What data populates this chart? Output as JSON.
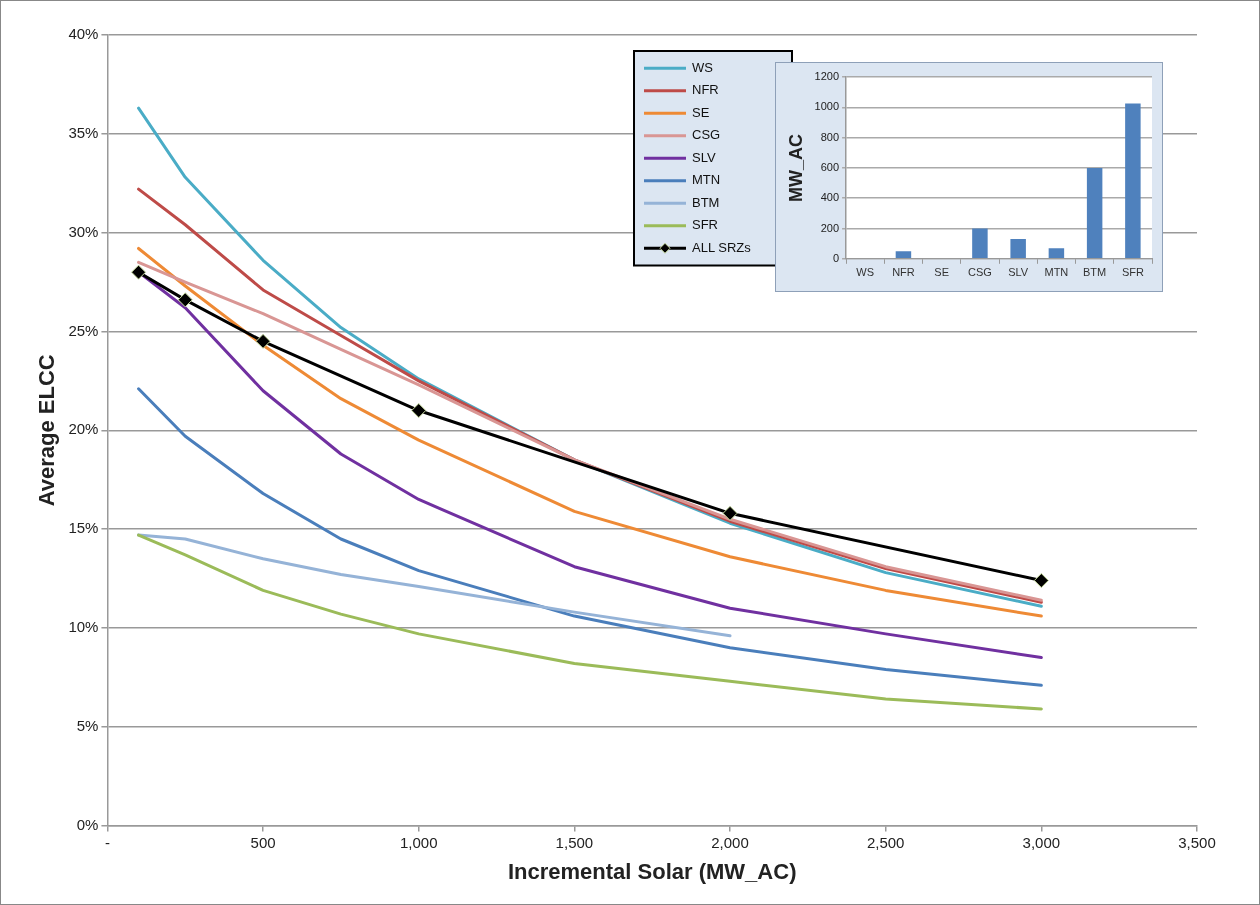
{
  "chart_data": [
    {
      "type": "line",
      "xlabel": "Incremental Solar (MW_AC)",
      "ylabel": "Average ELCC",
      "xlim": [
        0,
        3500
      ],
      "xticks": [
        {
          "value": 0,
          "label": "-"
        },
        500,
        {
          "value": 1000,
          "label": "1,000"
        },
        {
          "value": 1500,
          "label": "1,500"
        },
        {
          "value": 2000,
          "label": "2,000"
        },
        {
          "value": 2500,
          "label": "2,500"
        },
        {
          "value": 3000,
          "label": "3,000"
        },
        {
          "value": 3500,
          "label": "3,500"
        }
      ],
      "ylim": [
        0,
        40
      ],
      "yticks": [
        {
          "value": 0,
          "label": "0%"
        },
        {
          "value": 5,
          "label": "5%"
        },
        {
          "value": 10,
          "label": "10%"
        },
        {
          "value": 15,
          "label": "15%"
        },
        {
          "value": 20,
          "label": "20%"
        },
        {
          "value": 25,
          "label": "25%"
        },
        {
          "value": 30,
          "label": "30%"
        },
        {
          "value": 35,
          "label": "35%"
        },
        {
          "value": 40,
          "label": "40%"
        }
      ],
      "grid": "y",
      "legend": "top right",
      "marker": "none",
      "line_style": "solid",
      "x": [
        100,
        250,
        500,
        750,
        1000,
        1500,
        2000,
        2500,
        3000
      ],
      "series": [
        {
          "name": "WS",
          "color": "#4aacc6",
          "values": [
            36.3,
            32.8,
            28.6,
            25.2,
            22.6,
            18.5,
            15.3,
            12.8,
            11.1
          ]
        },
        {
          "name": "NFR",
          "color": "#be4b48",
          "values": [
            32.2,
            30.4,
            27.1,
            24.8,
            22.5,
            18.5,
            15.4,
            13.0,
            11.3
          ]
        },
        {
          "name": "SE",
          "color": "#ee8a35",
          "values": [
            29.2,
            27.3,
            24.3,
            21.6,
            19.5,
            15.9,
            13.6,
            11.9,
            10.6
          ]
        },
        {
          "name": "CSG",
          "color": "#d99694",
          "values": [
            28.5,
            27.5,
            25.9,
            24.1,
            22.3,
            18.5,
            15.5,
            13.1,
            11.4
          ]
        },
        {
          "name": "SLV",
          "color": "#7030a0",
          "values": [
            28.0,
            26.2,
            22.0,
            18.8,
            16.5,
            13.1,
            11.0,
            9.7,
            8.5
          ]
        },
        {
          "name": "MTN",
          "color": "#4a7ebb",
          "values": [
            22.1,
            19.7,
            16.8,
            14.5,
            12.9,
            10.6,
            9.0,
            7.9,
            7.1
          ]
        },
        {
          "name": "BTM",
          "color": "#95b3d7",
          "values": [
            14.7,
            14.5,
            13.5,
            12.7,
            12.1,
            10.8,
            9.6,
            null,
            null
          ]
        },
        {
          "name": "SFR",
          "color": "#9bbb59",
          "values": [
            14.7,
            13.7,
            11.9,
            10.7,
            9.7,
            8.2,
            7.3,
            6.4,
            5.9
          ]
        },
        {
          "name": "ALL SRZs",
          "color": "#000000",
          "marker": "diamond",
          "x": [
            100,
            250,
            500,
            1000,
            2000,
            3000
          ],
          "values": [
            28.0,
            26.6,
            24.5,
            21.0,
            15.8,
            12.4
          ]
        }
      ]
    },
    {
      "type": "bar",
      "ylabel": "MW_AC",
      "categories": [
        "WS",
        "NFR",
        "SE",
        "CSG",
        "SLV",
        "MTN",
        "BTM",
        "SFR"
      ],
      "values": [
        0,
        50,
        0,
        200,
        130,
        70,
        600,
        1025
      ],
      "color": "#4f81bd",
      "ylim": [
        0,
        1200
      ],
      "yticks": [
        0,
        200,
        400,
        600,
        800,
        1000,
        1200
      ],
      "grid": "y",
      "legend": false
    }
  ]
}
